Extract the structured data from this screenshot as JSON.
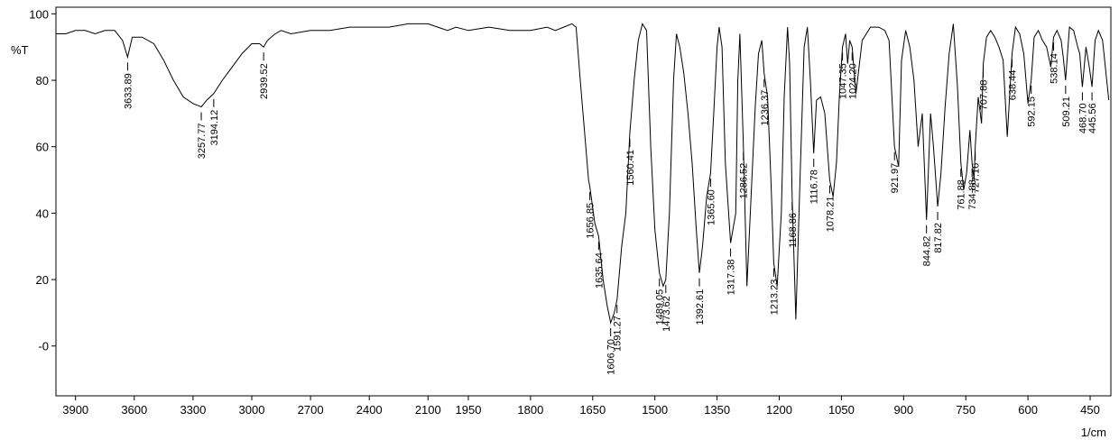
{
  "chart_data": {
    "type": "line",
    "title": "",
    "xlabel": "1/cm",
    "ylabel": "%T",
    "xlim_segments": [
      {
        "from": 4000,
        "to": 2000
      },
      {
        "from": 2000,
        "to": 400
      }
    ],
    "ylim": [
      -15,
      102
    ],
    "x_ticks": [
      3900,
      3600,
      3300,
      3000,
      2700,
      2400,
      2100,
      1950,
      1800,
      1650,
      1500,
      1350,
      1200,
      1050,
      900,
      750,
      600,
      450
    ],
    "y_ticks": [
      100,
      80,
      60,
      40,
      20,
      0
    ],
    "y_tick_labels": [
      "100",
      "80",
      "60",
      "40",
      "20",
      "-0"
    ],
    "line_color": "#000000",
    "series": [
      {
        "x": [
          4000,
          3950,
          3900,
          3850,
          3800,
          3750,
          3700,
          3660,
          3633.89,
          3610,
          3560,
          3500,
          3450,
          3400,
          3350,
          3300,
          3257.77,
          3230,
          3194.12,
          3150,
          3100,
          3050,
          3000,
          2960,
          2939.52,
          2920,
          2880,
          2850,
          2800,
          2700,
          2600,
          2500,
          2400,
          2300,
          2200,
          2100,
          2050,
          2000,
          1980,
          1950,
          1900,
          1850,
          1800,
          1760,
          1740,
          1720,
          1700,
          1690,
          1680,
          1670,
          1660,
          1656.85,
          1645,
          1635.64,
          1625,
          1615,
          1606.7,
          1598,
          1591.27,
          1580,
          1570,
          1560.41,
          1550,
          1540,
          1530,
          1520,
          1510,
          1500,
          1489.05,
          1480,
          1473.62,
          1465,
          1455,
          1448,
          1440,
          1430,
          1420,
          1410,
          1400,
          1392.61,
          1385,
          1375,
          1365.6,
          1358,
          1350,
          1345,
          1338,
          1330,
          1317.38,
          1305,
          1300,
          1295,
          1286.52,
          1278,
          1268,
          1258,
          1250,
          1242,
          1236.37,
          1228,
          1220,
          1213.23,
          1205,
          1195,
          1188,
          1180,
          1175,
          1168.86,
          1160,
          1150,
          1140,
          1132,
          1125,
          1116.78,
          1110,
          1100,
          1090,
          1078.21,
          1070,
          1062,
          1055,
          1047.35,
          1040,
          1035,
          1030,
          1024.2,
          1015,
          1000,
          980,
          960,
          945,
          935,
          921.97,
          912,
          905,
          895,
          885,
          875,
          865,
          855,
          844.82,
          835,
          828,
          817.82,
          810,
          800,
          790,
          780,
          770,
          761.88,
          755,
          748,
          740,
          734.88,
          730,
          727.16,
          720,
          712,
          707.88,
          700,
          690,
          680,
          670,
          660,
          650,
          638.44,
          630,
          620,
          610,
          600,
          592.15,
          585,
          575,
          565,
          555,
          545,
          538.14,
          530,
          520,
          515,
          509.21,
          500,
          490,
          480,
          475,
          468.7,
          460,
          452,
          445.56,
          438,
          430,
          420,
          410,
          405
        ],
        "y": [
          94,
          94,
          95,
          95,
          94,
          95,
          95,
          92,
          87,
          93,
          93,
          91,
          86,
          80,
          75,
          73,
          72,
          74,
          76,
          80,
          84,
          88,
          91,
          91,
          90,
          92,
          94,
          95,
          94,
          95,
          95,
          96,
          96,
          96,
          97,
          97,
          96,
          95,
          96,
          95,
          96,
          95,
          95,
          96,
          95,
          96,
          97,
          96,
          80,
          65,
          50,
          48,
          37,
          33,
          20,
          12,
          7,
          10,
          14,
          30,
          40,
          64,
          80,
          92,
          97,
          95,
          60,
          35,
          22,
          18,
          20,
          40,
          80,
          94,
          90,
          82,
          70,
          55,
          35,
          22,
          30,
          45,
          52,
          70,
          90,
          96,
          90,
          55,
          31,
          40,
          80,
          94,
          60,
          18,
          45,
          72,
          88,
          92,
          82,
          75,
          50,
          25,
          18,
          40,
          75,
          96,
          85,
          45,
          8,
          50,
          90,
          96,
          80,
          58,
          74,
          75,
          70,
          50,
          45,
          55,
          75,
          90,
          94,
          85,
          92,
          90,
          76,
          92,
          96,
          96,
          95,
          92,
          60,
          54,
          86,
          95,
          90,
          80,
          60,
          70,
          38,
          70,
          60,
          42,
          52,
          72,
          88,
          97,
          78,
          55,
          47,
          52,
          65,
          55,
          50,
          60,
          75,
          67,
          85,
          93,
          95,
          93,
          90,
          86,
          63,
          88,
          96,
          94,
          88,
          73,
          80,
          93,
          95,
          92,
          90,
          84,
          93,
          95,
          92,
          87,
          80,
          96,
          95,
          90,
          88,
          78,
          90,
          84,
          78,
          92,
          95,
          92,
          80,
          74
        ]
      }
    ],
    "peak_labels": [
      {
        "x": 3633.89,
        "text": "3633.89"
      },
      {
        "x": 3257.77,
        "text": "3257.77"
      },
      {
        "x": 3194.12,
        "text": "3194.12"
      },
      {
        "x": 2939.52,
        "text": "2939.52"
      },
      {
        "x": 1656.85,
        "text": "1656.85"
      },
      {
        "x": 1635.64,
        "text": "1635.64"
      },
      {
        "x": 1606.7,
        "text": "1606.70"
      },
      {
        "x": 1591.27,
        "text": "1591.27"
      },
      {
        "x": 1560.41,
        "text": "1560.41"
      },
      {
        "x": 1489.05,
        "text": "1489.05"
      },
      {
        "x": 1473.62,
        "text": "1473.62"
      },
      {
        "x": 1392.61,
        "text": "1392.61"
      },
      {
        "x": 1365.6,
        "text": "1365.60"
      },
      {
        "x": 1317.38,
        "text": "1317.38"
      },
      {
        "x": 1286.52,
        "text": "1286.52"
      },
      {
        "x": 1236.37,
        "text": "1236.37"
      },
      {
        "x": 1213.23,
        "text": "1213.23"
      },
      {
        "x": 1168.86,
        "text": "1168.86"
      },
      {
        "x": 1116.78,
        "text": "1116.78"
      },
      {
        "x": 1078.21,
        "text": "1078.21"
      },
      {
        "x": 1047.35,
        "text": "1047.35"
      },
      {
        "x": 1024.2,
        "text": "1024.20"
      },
      {
        "x": 921.97,
        "text": "921.97"
      },
      {
        "x": 844.82,
        "text": "844.82"
      },
      {
        "x": 817.82,
        "text": "817.82"
      },
      {
        "x": 761.88,
        "text": "761.88"
      },
      {
        "x": 734.88,
        "text": "734.88"
      },
      {
        "x": 727.16,
        "text": "727.16"
      },
      {
        "x": 707.88,
        "text": "707.88"
      },
      {
        "x": 638.44,
        "text": "638.44"
      },
      {
        "x": 592.15,
        "text": "592.15"
      },
      {
        "x": 538.14,
        "text": "538.14"
      },
      {
        "x": 509.21,
        "text": "509.21"
      },
      {
        "x": 468.7,
        "text": "468.70"
      },
      {
        "x": 445.56,
        "text": "445.56"
      }
    ]
  }
}
